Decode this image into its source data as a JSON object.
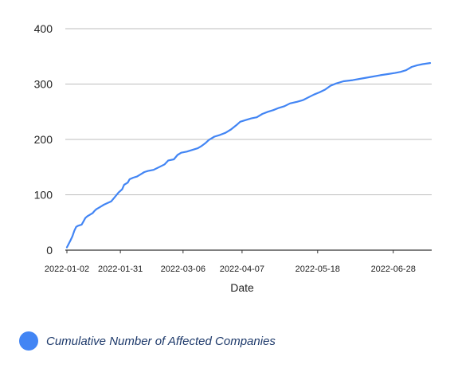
{
  "chart_data": {
    "type": "line",
    "title": "",
    "xlabel": "Date",
    "ylabel": "",
    "ylim": [
      0,
      400
    ],
    "yticks": [
      0,
      100,
      200,
      300,
      400
    ],
    "x_tick_labels": [
      "2022-01-02",
      "2022-01-31",
      "2022-03-06",
      "2022-04-07",
      "2022-05-18",
      "2022-06-28"
    ],
    "grid": "horizontal",
    "legend_position": "bottom-left",
    "series": [
      {
        "name": "Cumulative Number of Affected Companies",
        "color": "#4285f4",
        "points": [
          [
            "2022-01-02",
            5
          ],
          [
            "2022-01-04",
            18
          ],
          [
            "2022-01-05",
            25
          ],
          [
            "2022-01-06",
            35
          ],
          [
            "2022-01-07",
            42
          ],
          [
            "2022-01-08",
            44
          ],
          [
            "2022-01-09",
            45
          ],
          [
            "2022-01-10",
            46
          ],
          [
            "2022-01-11",
            52
          ],
          [
            "2022-01-12",
            58
          ],
          [
            "2022-01-13",
            61
          ],
          [
            "2022-01-14",
            63
          ],
          [
            "2022-01-15",
            65
          ],
          [
            "2022-01-16",
            67
          ],
          [
            "2022-01-17",
            71
          ],
          [
            "2022-01-18",
            74
          ],
          [
            "2022-01-19",
            76
          ],
          [
            "2022-01-20",
            78
          ],
          [
            "2022-01-21",
            80
          ],
          [
            "2022-01-22",
            82
          ],
          [
            "2022-01-24",
            85
          ],
          [
            "2022-01-26",
            88
          ],
          [
            "2022-01-28",
            96
          ],
          [
            "2022-01-30",
            104
          ],
          [
            "2022-02-01",
            110
          ],
          [
            "2022-02-02",
            118
          ],
          [
            "2022-02-04",
            122
          ],
          [
            "2022-02-05",
            128
          ],
          [
            "2022-02-07",
            131
          ],
          [
            "2022-02-09",
            133
          ],
          [
            "2022-02-11",
            137
          ],
          [
            "2022-02-13",
            141
          ],
          [
            "2022-02-15",
            143
          ],
          [
            "2022-02-18",
            145
          ],
          [
            "2022-02-21",
            150
          ],
          [
            "2022-02-24",
            155
          ],
          [
            "2022-02-26",
            162
          ],
          [
            "2022-03-01",
            164
          ],
          [
            "2022-03-03",
            172
          ],
          [
            "2022-03-05",
            176
          ],
          [
            "2022-03-08",
            178
          ],
          [
            "2022-03-11",
            181
          ],
          [
            "2022-03-14",
            184
          ],
          [
            "2022-03-16",
            188
          ],
          [
            "2022-03-18",
            193
          ],
          [
            "2022-03-20",
            199
          ],
          [
            "2022-03-23",
            205
          ],
          [
            "2022-03-26",
            208
          ],
          [
            "2022-03-29",
            212
          ],
          [
            "2022-04-01",
            218
          ],
          [
            "2022-04-04",
            226
          ],
          [
            "2022-04-06",
            232
          ],
          [
            "2022-04-09",
            235
          ],
          [
            "2022-04-12",
            238
          ],
          [
            "2022-04-15",
            240
          ],
          [
            "2022-04-18",
            246
          ],
          [
            "2022-04-21",
            250
          ],
          [
            "2022-04-24",
            253
          ],
          [
            "2022-04-27",
            257
          ],
          [
            "2022-04-30",
            260
          ],
          [
            "2022-05-03",
            265
          ],
          [
            "2022-05-07",
            268
          ],
          [
            "2022-05-10",
            271
          ],
          [
            "2022-05-13",
            276
          ],
          [
            "2022-05-16",
            281
          ],
          [
            "2022-05-19",
            285
          ],
          [
            "2022-05-22",
            290
          ],
          [
            "2022-05-25",
            297
          ],
          [
            "2022-05-28",
            301
          ],
          [
            "2022-06-01",
            305
          ],
          [
            "2022-06-06",
            307
          ],
          [
            "2022-06-11",
            310
          ],
          [
            "2022-06-16",
            313
          ],
          [
            "2022-06-21",
            316
          ],
          [
            "2022-06-25",
            318
          ],
          [
            "2022-06-29",
            320
          ],
          [
            "2022-07-02",
            322
          ],
          [
            "2022-07-05",
            325
          ],
          [
            "2022-07-08",
            331
          ],
          [
            "2022-07-11",
            334
          ],
          [
            "2022-07-14",
            336
          ],
          [
            "2022-07-18",
            338
          ]
        ]
      }
    ]
  }
}
